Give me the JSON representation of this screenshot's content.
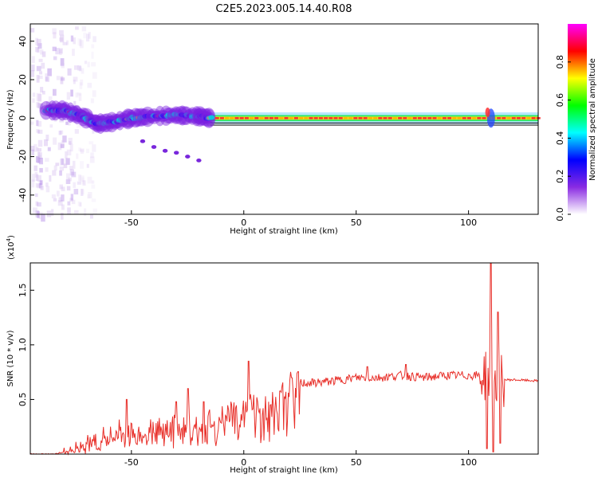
{
  "title": "C2E5.2023.005.14.40.R08",
  "chart_data": [
    {
      "type": "heatmap",
      "name": "spectrogram",
      "xlabel": "Height of straight line (km)",
      "ylabel": "Frequency (Hz)",
      "xlim": [
        -95,
        131
      ],
      "ylim": [
        -50,
        49
      ],
      "xticks": [
        -50,
        0,
        50,
        100
      ],
      "yticks": [
        -40,
        -20,
        0,
        20,
        40
      ],
      "colorbar": {
        "label": "Normalized spectral amplitude",
        "range": [
          0,
          1
        ],
        "ticks": [
          "0.0",
          "0.2",
          "0.4",
          "0.6",
          "0.8"
        ],
        "colors": [
          "#ffffff",
          "#8a2be2",
          "#0000ff",
          "#00ffff",
          "#00ff00",
          "#ffff00",
          "#ff0000",
          "#ff00ff"
        ]
      },
      "features": {
        "noise_band_x": [
          -95,
          -75
        ],
        "main_line_freq_hz": 0,
        "main_line_start_x": -15,
        "ridge_points": [
          [
            -88,
            4
          ],
          [
            -80,
            4
          ],
          [
            -72,
            1
          ],
          [
            -65,
            -3
          ],
          [
            -58,
            -2
          ],
          [
            -50,
            0
          ],
          [
            -40,
            1
          ],
          [
            -30,
            1.5
          ],
          [
            -20,
            1
          ],
          [
            -15,
            0
          ]
        ],
        "chirp_points": [
          [
            -45,
            -12
          ],
          [
            -40,
            -15
          ],
          [
            -35,
            -17
          ],
          [
            -30,
            -18
          ],
          [
            -25,
            -20
          ],
          [
            -20,
            -22
          ]
        ],
        "disturbance_x": 110
      }
    },
    {
      "type": "line",
      "name": "snr",
      "xlabel": "Height of straight line (km)",
      "ylabel": "SNR (10 * v/v)",
      "ymultiplier": "(x10^4)",
      "xlim": [
        -95,
        131
      ],
      "ylim": [
        0,
        1.75
      ],
      "xticks": [
        -50,
        0,
        50,
        100
      ],
      "yticks": [
        "0.5",
        "1.0",
        "1.5"
      ],
      "series": [
        {
          "name": "SNR",
          "color": "#e8302a",
          "x": [
            -95,
            -85,
            -80,
            -75,
            -70,
            -65,
            -60,
            -55,
            -50,
            -45,
            -40,
            -35,
            -30,
            -25,
            -20,
            -15,
            -10,
            -5,
            0,
            2,
            5,
            10,
            15,
            20,
            25,
            30,
            40,
            50,
            60,
            70,
            80,
            90,
            100,
            105,
            108,
            110,
            112,
            115,
            120,
            131
          ],
          "y": [
            0,
            0,
            0.02,
            0.06,
            0.1,
            0.14,
            0.18,
            0.2,
            0.2,
            0.22,
            0.22,
            0.23,
            0.25,
            0.27,
            0.3,
            0.33,
            0.35,
            0.38,
            0.42,
            0.5,
            0.45,
            0.5,
            0.55,
            0.6,
            0.65,
            0.65,
            0.67,
            0.7,
            0.7,
            0.72,
            0.7,
            0.72,
            0.72,
            0.72,
            0.72,
            0.7,
            0.7,
            0.68,
            0.68,
            0.67
          ],
          "peaks": [
            [
              -52,
              0.5
            ],
            [
              -30,
              0.48
            ],
            [
              -25,
              0.6
            ],
            [
              -18,
              0.48
            ],
            [
              2,
              0.85
            ],
            [
              55,
              0.8
            ],
            [
              72,
              0.82
            ],
            [
              110,
              1.75
            ],
            [
              113,
              1.3
            ]
          ],
          "dips": [
            [
              108,
              0.05
            ],
            [
              111,
              0.02
            ],
            [
              114,
              0.1
            ]
          ]
        }
      ]
    }
  ]
}
